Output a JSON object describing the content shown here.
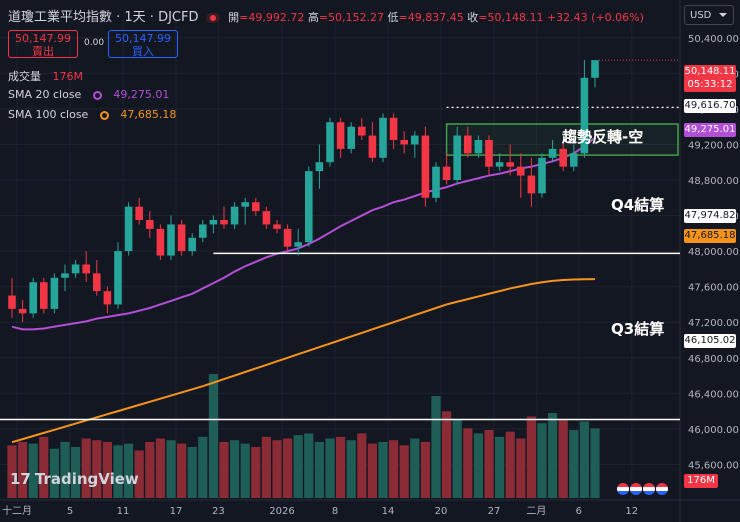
{
  "header": {
    "title": "道瓊工業平均指數 · 1天 · DJCFD",
    "open_label": "開",
    "open": "=49,992.72",
    "high_label": "高",
    "high": "=50,152.27",
    "low_label": "低",
    "low": "=49,837.45",
    "close_label": "收",
    "close": "=50,148.11",
    "change": "+32.43 (+0.06%)"
  },
  "trade": {
    "sell_price": "50,147.99",
    "sell_label": "賣出",
    "spread": "0.00",
    "buy_price": "50,147.99",
    "buy_label": "買入"
  },
  "indicators": {
    "volume_label": "成交量",
    "volume_value": "176M",
    "sma20_label": "SMA 20 close",
    "sma20_value": "49,275.01",
    "sma100_label": "SMA 100 close",
    "sma100_value": "47,685.18"
  },
  "currency": "USD",
  "brand": "TradingView",
  "annotations": {
    "q4": "Q4結算",
    "q3": "Q3結算",
    "box": "趨勢反轉-空"
  },
  "price_labels": {
    "current": "50,148.11",
    "countdown": "05:33:12",
    "dotted": "49,616.70",
    "sma20": "49,275.01",
    "q4": "47,974.82",
    "sma100": "47,685.18",
    "q3": "46,105.02",
    "volume": "176M"
  },
  "colors": {
    "background": "#131722",
    "up": "#26a69a",
    "down": "#f23645",
    "sma20": "#b24fd6",
    "sma100": "#f7931a",
    "box": "#43a047",
    "grid": "#1e222d",
    "text": "#d1d4dc"
  },
  "chart_data": {
    "type": "candlestick",
    "y_ticks": [
      45600,
      46000,
      46400,
      46800,
      47200,
      47600,
      48000,
      48400,
      48800,
      49200,
      49600,
      50000,
      50400
    ],
    "x_ticks": [
      "十二月",
      "5",
      "11",
      "17",
      "23",
      "2026",
      "8",
      "14",
      "20",
      "27",
      "二月",
      "6",
      "12"
    ],
    "ylim": [
      45200,
      50600
    ],
    "candles": [
      [
        47500,
        47700,
        47250,
        47350
      ],
      [
        47350,
        47450,
        47200,
        47300
      ],
      [
        47300,
        47700,
        47250,
        47650
      ],
      [
        47650,
        47700,
        47300,
        47350
      ],
      [
        47350,
        47750,
        47300,
        47700
      ],
      [
        47700,
        47850,
        47550,
        47750
      ],
      [
        47750,
        47900,
        47700,
        47850
      ],
      [
        47850,
        48000,
        47650,
        47750
      ],
      [
        47750,
        47900,
        47500,
        47550
      ],
      [
        47550,
        47600,
        47300,
        47400
      ],
      [
        47400,
        48100,
        47350,
        48000
      ],
      [
        48000,
        48550,
        47950,
        48500
      ],
      [
        48500,
        48600,
        48300,
        48350
      ],
      [
        48350,
        48450,
        48150,
        48250
      ],
      [
        48250,
        48300,
        47900,
        47950
      ],
      [
        47950,
        48400,
        47900,
        48300
      ],
      [
        48300,
        48350,
        47950,
        48000
      ],
      [
        48000,
        48200,
        47950,
        48150
      ],
      [
        48150,
        48350,
        48100,
        48300
      ],
      [
        48300,
        48400,
        48200,
        48350
      ],
      [
        48350,
        48500,
        48250,
        48300
      ],
      [
        48300,
        48550,
        48250,
        48500
      ],
      [
        48500,
        48600,
        48300,
        48550
      ],
      [
        48550,
        48600,
        48400,
        48450
      ],
      [
        48450,
        48500,
        48250,
        48300
      ],
      [
        48300,
        48350,
        48200,
        48250
      ],
      [
        48250,
        48300,
        48000,
        48050
      ],
      [
        48050,
        48250,
        47950,
        48100
      ],
      [
        48100,
        48950,
        48050,
        48900
      ],
      [
        48900,
        49200,
        48700,
        49000
      ],
      [
        49000,
        49500,
        48950,
        49450
      ],
      [
        49450,
        49500,
        49050,
        49150
      ],
      [
        49150,
        49450,
        49100,
        49400
      ],
      [
        49400,
        49500,
        49250,
        49300
      ],
      [
        49300,
        49450,
        49000,
        49050
      ],
      [
        49050,
        49550,
        49000,
        49500
      ],
      [
        49500,
        49550,
        49150,
        49250
      ],
      [
        49250,
        49350,
        49100,
        49200
      ],
      [
        49200,
        49350,
        49050,
        49300
      ],
      [
        49300,
        49400,
        48500,
        48600
      ],
      [
        48600,
        49000,
        48550,
        48950
      ],
      [
        48950,
        49100,
        48750,
        48800
      ],
      [
        48800,
        49400,
        48750,
        49300
      ],
      [
        49300,
        49400,
        49050,
        49100
      ],
      [
        49100,
        49300,
        49050,
        49250
      ],
      [
        49250,
        49300,
        48850,
        48950
      ],
      [
        48950,
        49100,
        48900,
        49000
      ],
      [
        49000,
        49200,
        48850,
        48950
      ],
      [
        48950,
        49100,
        48600,
        48850
      ],
      [
        48850,
        49050,
        48500,
        48650
      ],
      [
        48650,
        49100,
        48600,
        49050
      ],
      [
        49050,
        49250,
        49000,
        49150
      ],
      [
        49150,
        49250,
        48900,
        48950
      ],
      [
        48950,
        49200,
        48900,
        49100
      ],
      [
        49100,
        50150,
        49050,
        49950
      ],
      [
        49950,
        50150,
        49840,
        50148
      ]
    ],
    "volume": [
      3.1,
      3.3,
      3.2,
      3.6,
      2.9,
      3.3,
      3.0,
      3.5,
      3.4,
      3.3,
      3.1,
      3.2,
      2.8,
      3.3,
      3.5,
      3.4,
      3.2,
      3.0,
      3.6,
      7.3,
      3.3,
      3.4,
      3.2,
      3.0,
      3.6,
      3.4,
      3.5,
      3.7,
      3.8,
      3.3,
      3.5,
      3.6,
      3.4,
      3.8,
      3.2,
      3.3,
      3.4,
      3.1,
      3.5,
      3.3,
      6.0,
      5.1,
      4.6,
      4.1,
      3.8,
      4.0,
      3.6,
      3.9,
      3.5,
      4.8,
      4.4,
      5.0,
      4.6,
      4.0,
      4.5,
      4.1
    ],
    "sma20": [
      47150,
      47120,
      47120,
      47130,
      47150,
      47170,
      47190,
      47210,
      47240,
      47260,
      47280,
      47300,
      47330,
      47360,
      47400,
      47440,
      47480,
      47520,
      47580,
      47640,
      47700,
      47770,
      47830,
      47880,
      47930,
      47970,
      48000,
      48030,
      48080,
      48140,
      48210,
      48280,
      48340,
      48400,
      48460,
      48500,
      48550,
      48580,
      48620,
      48660,
      48690,
      48720,
      48760,
      48790,
      48820,
      48850,
      48870,
      48900,
      48930,
      48950,
      48980,
      49010,
      49050,
      49100,
      49180,
      49275
    ],
    "sma100": [
      45850,
      45885,
      45920,
      45955,
      45990,
      46025,
      46060,
      46095,
      46130,
      46165,
      46200,
      46235,
      46270,
      46305,
      46340,
      46375,
      46410,
      46445,
      46480,
      46520,
      46560,
      46600,
      46640,
      46680,
      46720,
      46760,
      46800,
      46840,
      46880,
      46920,
      46960,
      47000,
      47040,
      47080,
      47120,
      47160,
      47200,
      47240,
      47280,
      47320,
      47360,
      47400,
      47430,
      47460,
      47490,
      47520,
      47550,
      47580,
      47605,
      47630,
      47650,
      47665,
      47675,
      47680,
      47683,
      47685
    ],
    "lines": {
      "dotted": 49616.7,
      "q4": 47974.82,
      "q3": 46105.02
    },
    "box": {
      "top": 49430,
      "bottom": 49080,
      "from_index": 41,
      "to_index": 55
    }
  }
}
